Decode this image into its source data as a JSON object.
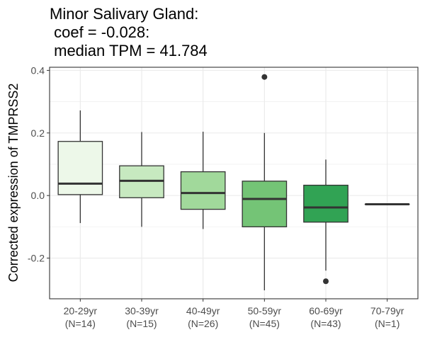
{
  "chart_data": {
    "type": "box",
    "title_lines": [
      "Minor Salivary Gland:",
      " coef = -0.028:",
      " median TPM = 41.784"
    ],
    "xlabel": "",
    "ylabel": "Corrected expression of TMPRSS2",
    "ylim": [
      -0.33,
      0.41
    ],
    "yticks": [
      -0.2,
      0.0,
      0.2,
      0.4
    ],
    "ytick_labels": [
      "-0.2",
      "0.0",
      "0.2",
      "0.4"
    ],
    "grid": true,
    "categories": [
      {
        "label": "20-29yr",
        "n_label": "(N=14)",
        "color": "#edf8e9",
        "whisker_low": -0.088,
        "q1": 0.003,
        "median": 0.038,
        "q3": 0.173,
        "whisker_high": 0.272,
        "outliers": []
      },
      {
        "label": "30-39yr",
        "n_label": "(N=15)",
        "color": "#c7e9c0",
        "whisker_low": -0.1,
        "q1": -0.007,
        "median": 0.047,
        "q3": 0.095,
        "whisker_high": 0.203,
        "outliers": []
      },
      {
        "label": "40-49yr",
        "n_label": "(N=26)",
        "color": "#a1d99b",
        "whisker_low": -0.107,
        "q1": -0.044,
        "median": 0.008,
        "q3": 0.076,
        "whisker_high": 0.204,
        "outliers": []
      },
      {
        "label": "50-59yr",
        "n_label": "(N=45)",
        "color": "#74c476",
        "whisker_low": -0.303,
        "q1": -0.1,
        "median": -0.011,
        "q3": 0.046,
        "whisker_high": 0.2,
        "outliers": [
          0.379
        ]
      },
      {
        "label": "60-69yr",
        "n_label": "(N=43)",
        "color": "#31a354",
        "whisker_low": -0.24,
        "q1": -0.085,
        "median": -0.038,
        "q3": 0.033,
        "whisker_high": 0.115,
        "outliers": [
          -0.274
        ]
      },
      {
        "label": "70-79yr",
        "n_label": "(N=1)",
        "color": "#006d2c",
        "whisker_low": -0.028,
        "q1": -0.028,
        "median": -0.028,
        "q3": -0.028,
        "whisker_high": -0.028,
        "outliers": []
      }
    ]
  }
}
